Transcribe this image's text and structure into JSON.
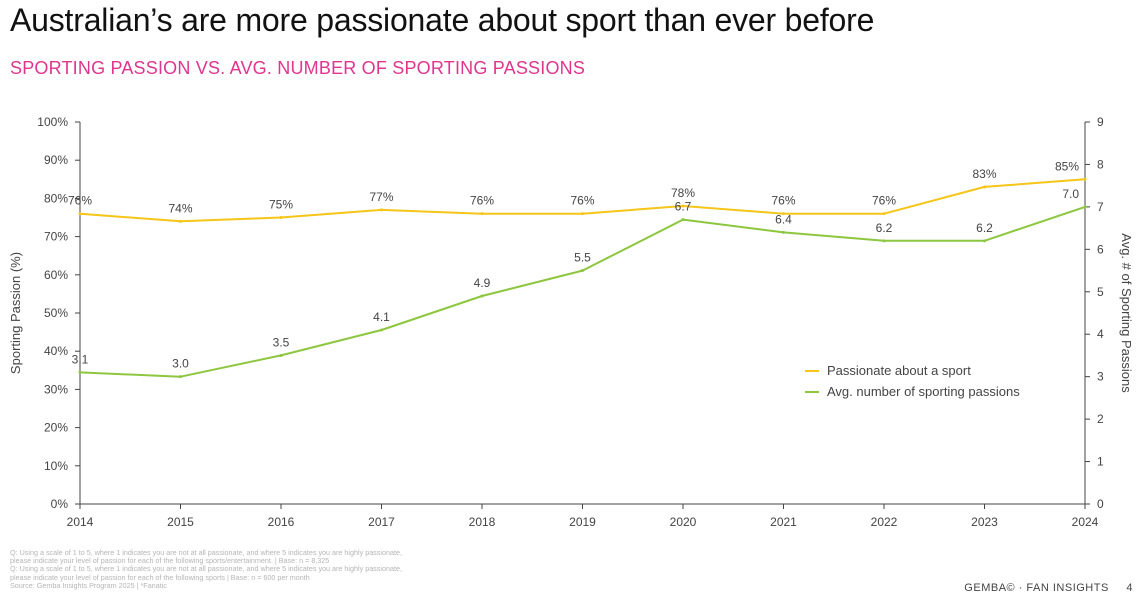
{
  "header": {
    "title": "Australian’s are more passionate about sport than ever before",
    "subtitle": "SPORTING PASSION VS. AVG. NUMBER OF SPORTING PASSIONS"
  },
  "colors": {
    "accent": "#e0358f",
    "series_passion": "#f5c518",
    "series_avg": "#8dc63f",
    "axis": "#444444",
    "text": "#444444"
  },
  "chart_data": {
    "type": "line",
    "x": [
      2014,
      2015,
      2016,
      2017,
      2018,
      2019,
      2020,
      2021,
      2022,
      2023,
      2024
    ],
    "xlim": [
      2014,
      2024
    ],
    "ylabel": "Sporting Passion (%)",
    "y2label": "Avg. # of Sporting Passions",
    "ylim": [
      0,
      100
    ],
    "y2lim": [
      0,
      9
    ],
    "y_ticks": [
      "0%",
      "10%",
      "20%",
      "30%",
      "40%",
      "50%",
      "60%",
      "70%",
      "80%",
      "90%",
      "100%"
    ],
    "y2_ticks": [
      "0",
      "1",
      "2",
      "3",
      "4",
      "5",
      "6",
      "7",
      "8",
      "9"
    ],
    "grid": false,
    "legend_position": "right-middle",
    "series": [
      {
        "name": "Passionate about a sport",
        "axis": "left",
        "values": [
          76,
          74,
          75,
          77,
          76,
          76,
          78,
          76,
          76,
          83,
          85
        ],
        "labels": [
          "76%",
          "74%",
          "75%",
          "77%",
          "76%",
          "76%",
          "78%",
          "76%",
          "76%",
          "83%",
          "85%"
        ]
      },
      {
        "name": "Avg. number of sporting passions",
        "axis": "right",
        "values": [
          3.1,
          3.0,
          3.5,
          4.1,
          4.9,
          5.5,
          6.7,
          6.4,
          6.2,
          6.2,
          7.0
        ],
        "labels": [
          "3.1",
          "3.0",
          "3.5",
          "4.1",
          "4.9",
          "5.5",
          "6.7",
          "6.4",
          "6.2",
          "6.2",
          "7.0"
        ]
      }
    ]
  },
  "footnotes": [
    "Q: Using a scale of 1 to 5, where 1 indicates you are not at all passionate, and where 5 indicates you are highly passionate,",
    "please indicate your level of passion for each of the following sports/entertainment. | Base: n = 8,325",
    "Q: Using a scale of 1 to 5, where 1 indicates you are not at all passionate, and where 5 indicates you are highly passionate,",
    "please indicate your level of passion for each of the following sports | Base: n = 600 per month",
    "Source: Gemba Insights Program 2025 | *Fanatic"
  ],
  "footer": {
    "brand": "GEMBA© · FAN INSIGHTS",
    "page": "4"
  }
}
